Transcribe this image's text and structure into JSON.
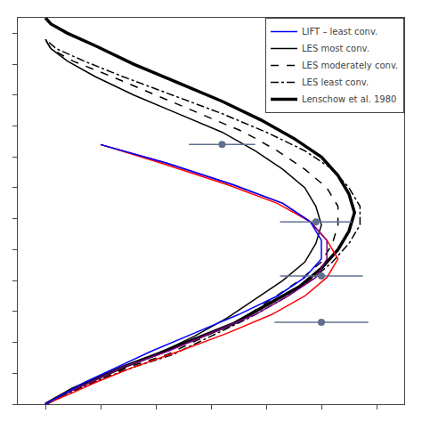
{
  "chart_data": {
    "type": "line",
    "tick_labels": false,
    "grid": false,
    "legend": "upper right",
    "xlim": [
      -0.05,
      0.65
    ],
    "xticks": [
      0.0,
      0.1,
      0.2,
      0.3,
      0.4,
      0.5,
      0.6
    ],
    "ylim": [
      0.0,
      1.25
    ],
    "yticks": [
      0.0,
      0.1,
      0.2,
      0.3,
      0.4,
      0.5,
      0.6,
      0.7,
      0.8,
      0.9,
      1.0,
      1.1,
      1.2
    ],
    "series": [
      {
        "name": "Lenschow et al. 1980",
        "color": "#000000",
        "line_style": "thick",
        "x": [
          0.0,
          0.02,
          0.05,
          0.09,
          0.14,
          0.2,
          0.27,
          0.34,
          0.4,
          0.46,
          0.5,
          0.53,
          0.55,
          0.56,
          0.55,
          0.53,
          0.5,
          0.45,
          0.39,
          0.32,
          0.24,
          0.16,
          0.09,
          0.04,
          0.01,
          0.0
        ],
        "values": [
          0.0,
          0.02,
          0.05,
          0.08,
          0.12,
          0.16,
          0.21,
          0.26,
          0.32,
          0.38,
          0.44,
          0.5,
          0.56,
          0.62,
          0.68,
          0.74,
          0.8,
          0.86,
          0.92,
          0.98,
          1.04,
          1.1,
          1.16,
          1.2,
          1.23,
          1.25
        ]
      },
      {
        "name": "LES least conv.",
        "color": "#000000",
        "line_style": "dashdot",
        "x": [
          0.0,
          0.02,
          0.06,
          0.1,
          0.16,
          0.23,
          0.3,
          0.37,
          0.43,
          0.48,
          0.52,
          0.55,
          0.57,
          0.57,
          0.55,
          0.52,
          0.47,
          0.4,
          0.32,
          0.23,
          0.14,
          0.07,
          0.02,
          0.0
        ],
        "values": [
          0.0,
          0.02,
          0.05,
          0.08,
          0.12,
          0.16,
          0.22,
          0.28,
          0.34,
          0.4,
          0.46,
          0.52,
          0.58,
          0.64,
          0.7,
          0.76,
          0.82,
          0.88,
          0.94,
          1.0,
          1.06,
          1.11,
          1.15,
          1.18
        ]
      },
      {
        "name": "LES moderately conv.",
        "color": "#000000",
        "line_style": "dashed",
        "x": [
          0.0,
          0.02,
          0.06,
          0.1,
          0.15,
          0.22,
          0.29,
          0.36,
          0.41,
          0.46,
          0.5,
          0.52,
          0.53,
          0.53,
          0.51,
          0.47,
          0.42,
          0.36,
          0.28,
          0.2,
          0.12,
          0.05,
          0.01,
          0.0
        ],
        "values": [
          0.0,
          0.02,
          0.05,
          0.08,
          0.12,
          0.16,
          0.22,
          0.28,
          0.34,
          0.4,
          0.46,
          0.52,
          0.58,
          0.64,
          0.7,
          0.76,
          0.82,
          0.88,
          0.94,
          1.0,
          1.06,
          1.11,
          1.15,
          1.18
        ]
      },
      {
        "name": "LES most conv.",
        "color": "#000000",
        "line_style": "solid",
        "x": [
          0.0,
          0.02,
          0.05,
          0.09,
          0.14,
          0.2,
          0.27,
          0.33,
          0.38,
          0.43,
          0.47,
          0.49,
          0.5,
          0.49,
          0.47,
          0.43,
          0.38,
          0.32,
          0.24,
          0.16,
          0.09,
          0.04,
          0.01,
          0.0
        ],
        "values": [
          0.0,
          0.02,
          0.05,
          0.08,
          0.12,
          0.16,
          0.22,
          0.28,
          0.34,
          0.4,
          0.46,
          0.52,
          0.58,
          0.64,
          0.7,
          0.76,
          0.82,
          0.88,
          0.94,
          1.0,
          1.06,
          1.11,
          1.15,
          1.18
        ]
      },
      {
        "color": "red",
        "line_style": "solid",
        "x": [
          0.0,
          0.04,
          0.09,
          0.16,
          0.24,
          0.33,
          0.41,
          0.47,
          0.51,
          0.53,
          0.51,
          0.48,
          0.42,
          0.33,
          0.21,
          0.1
        ],
        "values": [
          0.0,
          0.03,
          0.07,
          0.12,
          0.17,
          0.23,
          0.29,
          0.35,
          0.41,
          0.47,
          0.53,
          0.59,
          0.65,
          0.71,
          0.78,
          0.84
        ]
      },
      {
        "color": "purple",
        "line_style": "solid",
        "x": [
          0.0,
          0.03,
          0.08,
          0.14,
          0.22,
          0.3,
          0.38,
          0.44,
          0.49,
          0.51,
          0.51,
          0.48,
          0.43,
          0.34,
          0.22,
          0.1
        ],
        "values": [
          0.0,
          0.03,
          0.07,
          0.12,
          0.17,
          0.23,
          0.29,
          0.35,
          0.41,
          0.47,
          0.53,
          0.59,
          0.65,
          0.71,
          0.78,
          0.84
        ]
      },
      {
        "name": "LIFT – least conv.",
        "color": "blue",
        "line_style": "solid",
        "x": [
          0.0,
          0.03,
          0.07,
          0.13,
          0.19,
          0.27,
          0.35,
          0.42,
          0.47,
          0.5,
          0.5,
          0.48,
          0.43,
          0.34,
          0.22,
          0.1
        ],
        "values": [
          0.0,
          0.03,
          0.07,
          0.12,
          0.17,
          0.23,
          0.29,
          0.35,
          0.41,
          0.47,
          0.53,
          0.59,
          0.65,
          0.71,
          0.78,
          0.84
        ]
      },
      {
        "type": "scatter",
        "marker": "circle",
        "color": "#607090",
        "x": [
          0.5,
          0.5,
          0.49,
          0.32
        ],
        "values": [
          0.265,
          0.415,
          0.59,
          0.84
        ],
        "xerr": [
          0.085,
          0.075,
          0.065,
          0.06
        ]
      }
    ]
  }
}
